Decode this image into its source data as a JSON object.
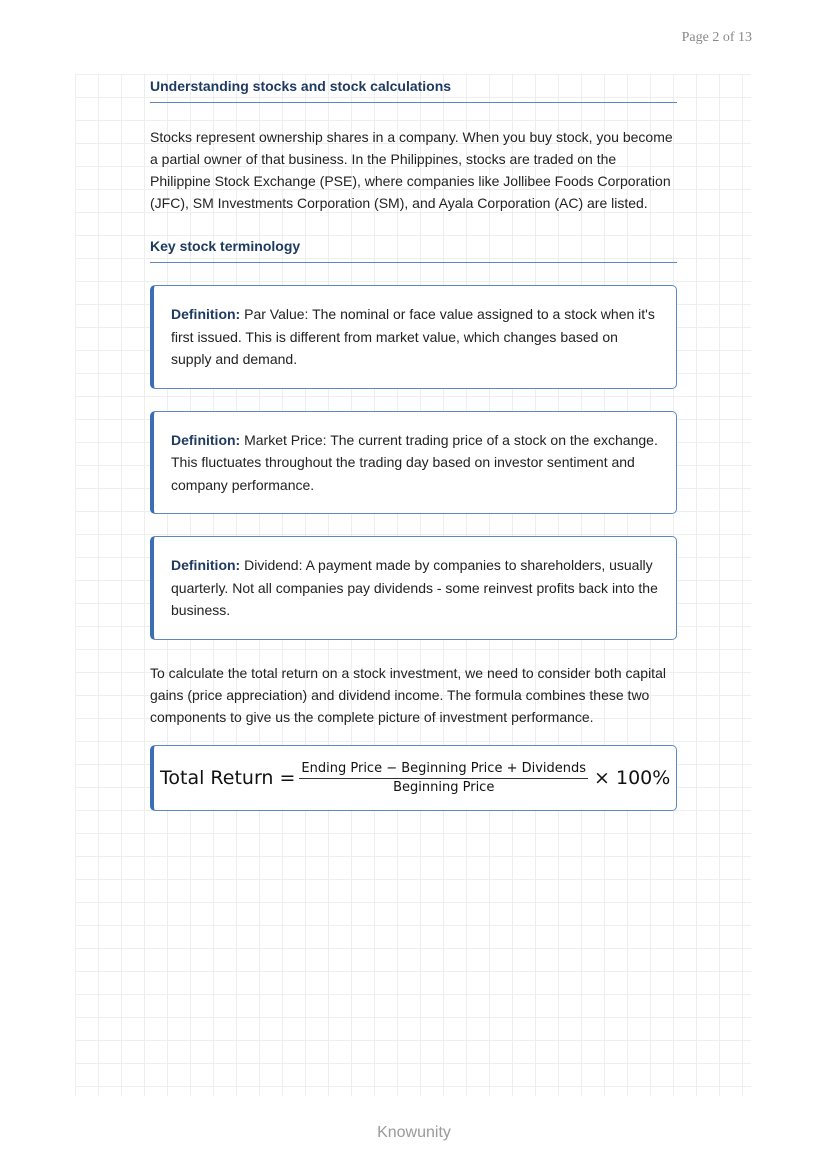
{
  "header": {
    "page_indicator": "Page 2 of 13"
  },
  "section": {
    "title": "Understanding stocks and stock calculations",
    "intro": "Stocks represent ownership shares in a company. When you buy stock, you become a partial owner of that business. In the Philippines, stocks are traded on the Philippine Stock Exchange (PSE), where companies like Jollibee Foods Corporation (JFC), SM Investments Corporation (SM), and Ayala Corporation (AC) are listed.",
    "subheading": "Key stock terminology",
    "definitions": [
      {
        "label": "Definition:",
        "text": " Par Value: The nominal or face value assigned to a stock when it's first issued. This is different from market value, which changes based on supply and demand."
      },
      {
        "label": "Definition:",
        "text": " Market Price: The current trading price of a stock on the exchange. This fluctuates throughout the trading day based on investor sentiment and company performance."
      },
      {
        "label": "Definition:",
        "text": " Dividend: A payment made by companies to shareholders, usually quarterly. Not all companies pay dividends - some reinvest profits back into the business."
      }
    ],
    "explanation": "To calculate the total return on a stock investment, we need to consider both capital gains (price appreciation) and dividend income. The formula combines these two components to give us the complete picture of investment performance.",
    "formula": {
      "lhs": "Total Return =",
      "numerator": "Ending Price − Beginning Price + Dividends",
      "denominator": "Beginning Price",
      "rhs": "× 100%"
    }
  },
  "footer": {
    "brand": "Knowunity"
  },
  "colors": {
    "accent": "#3a6fb4",
    "heading": "#1e3a60"
  }
}
